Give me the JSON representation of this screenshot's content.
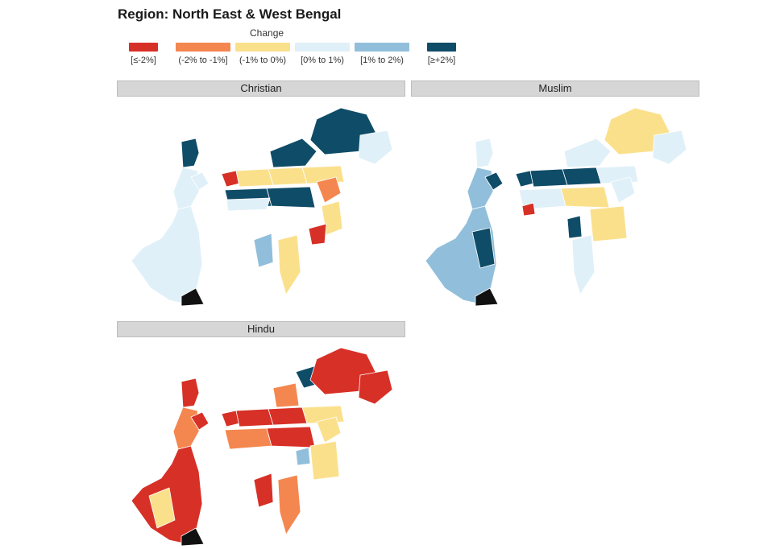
{
  "title": "Region: North East & West Bengal",
  "legend": {
    "title": "Change",
    "items": [
      {
        "label": "[≤-2%]",
        "color": "#d73027"
      },
      {
        "label": "(-2% to -1%]",
        "color": "#f4874f"
      },
      {
        "label": "(-1% to 0%)",
        "color": "#fbe08c"
      },
      {
        "label": "[0% to 1%)",
        "color": "#e0f0f8"
      },
      {
        "label": "[1% to 2%)",
        "color": "#91bfdb"
      },
      {
        "label": "[≥+2%]",
        "color": "#0f4c68"
      }
    ]
  },
  "panels": [
    {
      "label": "Christian",
      "dominant": "#0f4c68"
    },
    {
      "label": "Muslim",
      "dominant": "#e0f0f8"
    },
    {
      "label": "Hindu",
      "dominant": "#d73027"
    }
  ]
}
